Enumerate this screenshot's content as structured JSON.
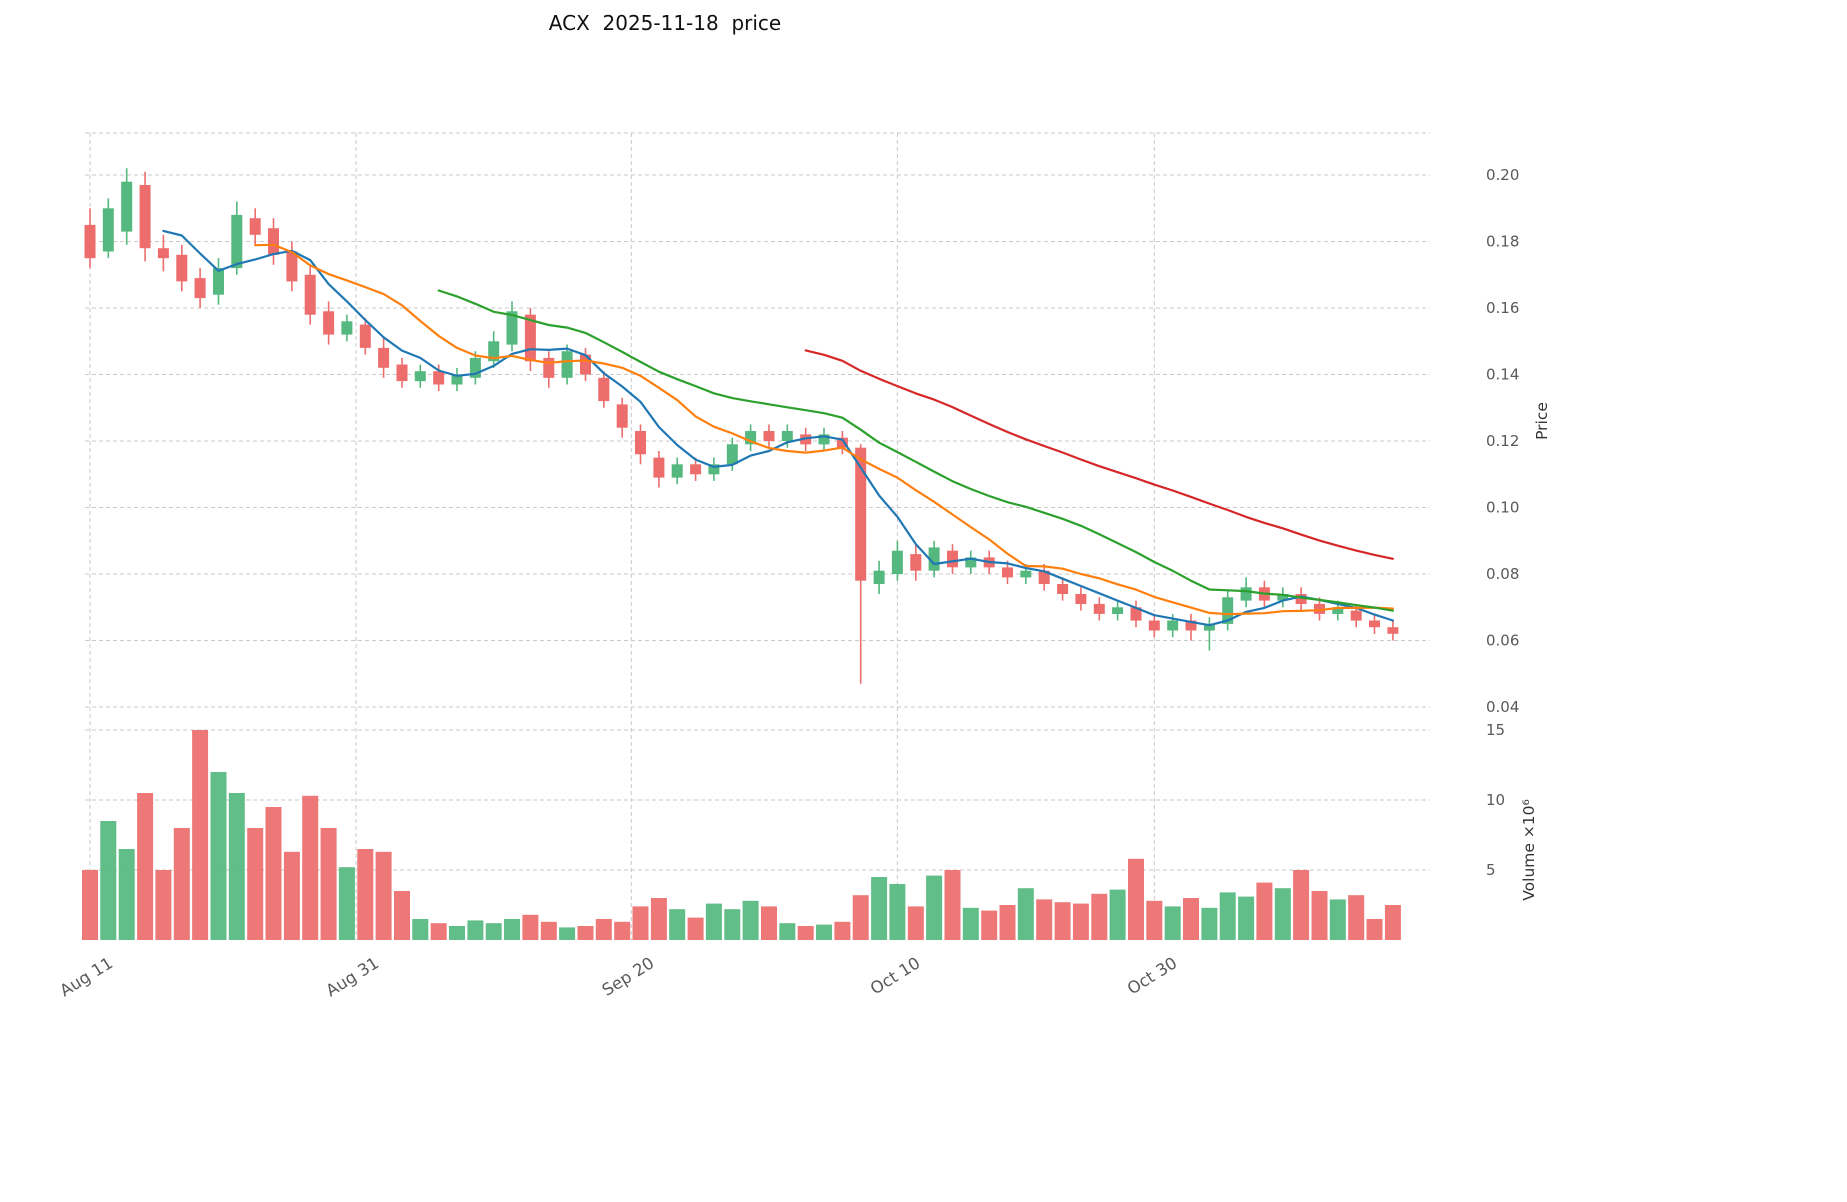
{
  "chart_data": {
    "type": "candlestick",
    "title": "ACX  2025-11-18  price",
    "price_axis_label": "Price",
    "volume_axis_label": "Volume ×10⁶",
    "grid": true,
    "legend": "none",
    "price_range_shown": [
      0.04,
      0.2
    ],
    "volume_unit": "10^6 shares",
    "price_ticks": [
      {
        "label": "0.04",
        "value": 0.04
      },
      {
        "label": "0.06",
        "value": 0.06
      },
      {
        "label": "0.08",
        "value": 0.08
      },
      {
        "label": "0.10",
        "value": 0.1
      },
      {
        "label": "0.12",
        "value": 0.12
      },
      {
        "label": "0.14",
        "value": 0.14
      },
      {
        "label": "0.16",
        "value": 0.16
      },
      {
        "label": "0.18",
        "value": 0.18
      },
      {
        "label": "0.20",
        "value": 0.2
      }
    ],
    "volume_ticks": [
      {
        "label": "5",
        "value": 5
      },
      {
        "label": "10",
        "value": 10
      },
      {
        "label": "15",
        "value": 15
      }
    ],
    "x_ticks": [
      {
        "label": "Aug 11",
        "index": 0
      },
      {
        "label": "Aug 31",
        "index": 14.5
      },
      {
        "label": "Sep 20",
        "index": 29.5
      },
      {
        "label": "Oct 10",
        "index": 44
      },
      {
        "label": "Oct 30",
        "index": 58
      }
    ],
    "colors": {
      "up": "#55b87e",
      "down": "#ed6d6d",
      "ma5": "#1f77b4",
      "ma10": "#ff7f0e",
      "ma20": "#2ca02c",
      "ma40": "#d62728",
      "grid": "#c9c9c9",
      "tick_text": "#595959"
    },
    "moving_averages": [
      {
        "name": "sma5",
        "window": 5,
        "color": "#1f77b4"
      },
      {
        "name": "sma10",
        "window": 10,
        "color": "#ff7f0e"
      },
      {
        "name": "sma20",
        "window": 20,
        "color": "#2ca02c"
      },
      {
        "name": "sma40",
        "window": 40,
        "color": "#d62728"
      }
    ],
    "candles": {
      "date": [
        "Aug 11",
        "Aug 12",
        "Aug 13",
        "Aug 14",
        "Aug 15",
        "Aug 18",
        "Aug 19",
        "Aug 20",
        "Aug 21",
        "Aug 22",
        "Aug 25",
        "Aug 26",
        "Aug 27",
        "Aug 28",
        "Aug 29",
        "Sep 1",
        "Sep 2",
        "Sep 3",
        "Sep 4",
        "Sep 5",
        "Sep 8",
        "Sep 9",
        "Sep 10",
        "Sep 11",
        "Sep 12",
        "Sep 15",
        "Sep 16",
        "Sep 17",
        "Sep 18",
        "Sep 19",
        "Sep 22",
        "Sep 23",
        "Sep 24",
        "Sep 25",
        "Sep 26",
        "Sep 29",
        "Sep 30",
        "Oct 1",
        "Oct 2",
        "Oct 3",
        "Oct 6",
        "Oct 7",
        "Oct 8",
        "Oct 9",
        "Oct 10",
        "Oct 13",
        "Oct 14",
        "Oct 15",
        "Oct 16",
        "Oct 17",
        "Oct 20",
        "Oct 21",
        "Oct 22",
        "Oct 23",
        "Oct 24",
        "Oct 27",
        "Oct 28",
        "Oct 29",
        "Oct 30",
        "Oct 31",
        "Nov 3",
        "Nov 4",
        "Nov 5",
        "Nov 6",
        "Nov 7",
        "Nov 10",
        "Nov 11",
        "Nov 12",
        "Nov 13",
        "Nov 14",
        "Nov 17",
        "Nov 18"
      ],
      "open": [
        0.185,
        0.177,
        0.183,
        0.197,
        0.178,
        0.176,
        0.169,
        0.164,
        0.172,
        0.187,
        0.184,
        0.177,
        0.17,
        0.159,
        0.152,
        0.155,
        0.148,
        0.143,
        0.138,
        0.141,
        0.137,
        0.139,
        0.144,
        0.149,
        0.158,
        0.145,
        0.139,
        0.146,
        0.139,
        0.131,
        0.123,
        0.115,
        0.109,
        0.113,
        0.11,
        0.113,
        0.119,
        0.123,
        0.12,
        0.122,
        0.119,
        0.121,
        0.118,
        0.077,
        0.08,
        0.086,
        0.081,
        0.087,
        0.082,
        0.085,
        0.082,
        0.079,
        0.081,
        0.077,
        0.074,
        0.071,
        0.068,
        0.07,
        0.066,
        0.063,
        0.066,
        0.063,
        0.065,
        0.072,
        0.076,
        0.072,
        0.074,
        0.071,
        0.068,
        0.069,
        0.066,
        0.064
      ],
      "high": [
        0.19,
        0.193,
        0.202,
        0.201,
        0.182,
        0.179,
        0.172,
        0.175,
        0.192,
        0.19,
        0.187,
        0.18,
        0.173,
        0.162,
        0.158,
        0.157,
        0.151,
        0.145,
        0.143,
        0.143,
        0.142,
        0.147,
        0.153,
        0.162,
        0.16,
        0.147,
        0.149,
        0.148,
        0.141,
        0.133,
        0.125,
        0.117,
        0.115,
        0.115,
        0.115,
        0.121,
        0.125,
        0.125,
        0.125,
        0.124,
        0.124,
        0.123,
        0.119,
        0.084,
        0.09,
        0.089,
        0.09,
        0.089,
        0.087,
        0.087,
        0.084,
        0.083,
        0.083,
        0.079,
        0.076,
        0.073,
        0.072,
        0.072,
        0.068,
        0.068,
        0.068,
        0.067,
        0.075,
        0.079,
        0.078,
        0.076,
        0.076,
        0.073,
        0.072,
        0.071,
        0.068,
        0.066
      ],
      "low": [
        0.172,
        0.175,
        0.179,
        0.174,
        0.171,
        0.165,
        0.16,
        0.161,
        0.17,
        0.179,
        0.173,
        0.165,
        0.155,
        0.149,
        0.15,
        0.146,
        0.139,
        0.136,
        0.136,
        0.135,
        0.135,
        0.137,
        0.142,
        0.147,
        0.141,
        0.136,
        0.137,
        0.138,
        0.13,
        0.121,
        0.113,
        0.106,
        0.107,
        0.108,
        0.108,
        0.111,
        0.117,
        0.118,
        0.118,
        0.117,
        0.117,
        0.116,
        0.047,
        0.074,
        0.078,
        0.078,
        0.079,
        0.08,
        0.08,
        0.08,
        0.077,
        0.077,
        0.075,
        0.072,
        0.069,
        0.066,
        0.066,
        0.064,
        0.061,
        0.061,
        0.06,
        0.057,
        0.063,
        0.07,
        0.07,
        0.07,
        0.069,
        0.066,
        0.066,
        0.064,
        0.062,
        0.06
      ],
      "close": [
        0.175,
        0.19,
        0.198,
        0.178,
        0.175,
        0.168,
        0.163,
        0.172,
        0.188,
        0.182,
        0.176,
        0.168,
        0.158,
        0.152,
        0.156,
        0.148,
        0.142,
        0.138,
        0.141,
        0.137,
        0.14,
        0.145,
        0.15,
        0.159,
        0.144,
        0.139,
        0.147,
        0.14,
        0.132,
        0.124,
        0.116,
        0.109,
        0.113,
        0.11,
        0.113,
        0.119,
        0.123,
        0.12,
        0.123,
        0.119,
        0.122,
        0.118,
        0.078,
        0.081,
        0.087,
        0.081,
        0.088,
        0.082,
        0.085,
        0.082,
        0.079,
        0.081,
        0.077,
        0.074,
        0.071,
        0.068,
        0.07,
        0.066,
        0.063,
        0.066,
        0.063,
        0.065,
        0.073,
        0.076,
        0.072,
        0.074,
        0.071,
        0.068,
        0.07,
        0.066,
        0.064,
        0.062
      ],
      "volume_millions": [
        5.0,
        8.5,
        6.5,
        10.5,
        5.0,
        8.0,
        15.0,
        12.0,
        10.5,
        8.0,
        9.5,
        6.3,
        10.3,
        8.0,
        5.2,
        6.5,
        6.3,
        3.5,
        1.5,
        1.2,
        1.0,
        1.4,
        1.2,
        1.5,
        1.8,
        1.3,
        0.9,
        1.0,
        1.5,
        1.3,
        2.4,
        3.0,
        2.2,
        1.6,
        2.6,
        2.2,
        2.8,
        2.4,
        1.2,
        1.0,
        1.1,
        1.3,
        3.2,
        4.5,
        4.0,
        2.4,
        4.6,
        5.0,
        2.3,
        2.1,
        2.5,
        3.7,
        2.9,
        2.7,
        2.6,
        3.3,
        3.6,
        5.8,
        2.8,
        2.4,
        3.0,
        2.3,
        3.4,
        3.1,
        4.1,
        3.7,
        5.0,
        3.5,
        2.9,
        3.2,
        1.5,
        2.5
      ]
    }
  }
}
